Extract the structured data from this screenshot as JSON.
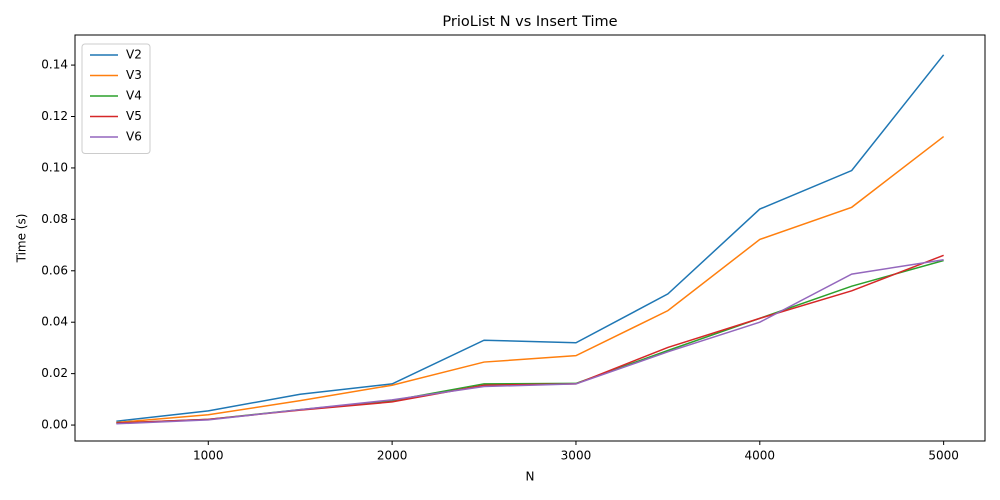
{
  "chart_data": {
    "type": "line",
    "title": "PrioList N vs Insert Time",
    "x_label": "N",
    "y_label": "Time (s)",
    "x": [
      500,
      1000,
      1500,
      2000,
      2500,
      3000,
      3500,
      4000,
      4500,
      5000
    ],
    "series": [
      {
        "name": "V2",
        "color": "#1f77b4",
        "values": [
          0.0015,
          0.0055,
          0.012,
          0.016,
          0.033,
          0.032,
          0.051,
          0.084,
          0.099,
          0.144
        ]
      },
      {
        "name": "V3",
        "color": "#ff7f0e",
        "values": [
          0.001,
          0.004,
          0.0095,
          0.0155,
          0.0245,
          0.027,
          0.0445,
          0.0722,
          0.0847,
          0.1122
        ]
      },
      {
        "name": "V4",
        "color": "#2ca02c",
        "values": [
          0.0008,
          0.0022,
          0.006,
          0.0095,
          0.016,
          0.0162,
          0.029,
          0.0415,
          0.054,
          0.064
        ]
      },
      {
        "name": "V5",
        "color": "#d62728",
        "values": [
          0.0008,
          0.0022,
          0.0058,
          0.009,
          0.0155,
          0.016,
          0.0302,
          0.0415,
          0.0522,
          0.066
        ]
      },
      {
        "name": "V6",
        "color": "#9467bd",
        "values": [
          0.0005,
          0.002,
          0.006,
          0.0098,
          0.015,
          0.016,
          0.0285,
          0.04,
          0.0587,
          0.0643
        ]
      }
    ],
    "xlim": [
      275,
      5225
    ],
    "xticks": [
      1000,
      2000,
      3000,
      4000,
      5000
    ],
    "ylim": [
      -0.0062,
      0.1517
    ],
    "yticks": [
      {
        "value": 0,
        "label": "0.00"
      },
      {
        "value": 0.02,
        "label": "0.02"
      },
      {
        "value": 0.04,
        "label": "0.04"
      },
      {
        "value": 0.06,
        "label": "0.06"
      },
      {
        "value": 0.08,
        "label": "0.08"
      },
      {
        "value": 0.1,
        "label": "0.10"
      },
      {
        "value": 0.12,
        "label": "0.12"
      },
      {
        "value": 0.14,
        "label": "0.14"
      }
    ],
    "legend": "upper left"
  }
}
